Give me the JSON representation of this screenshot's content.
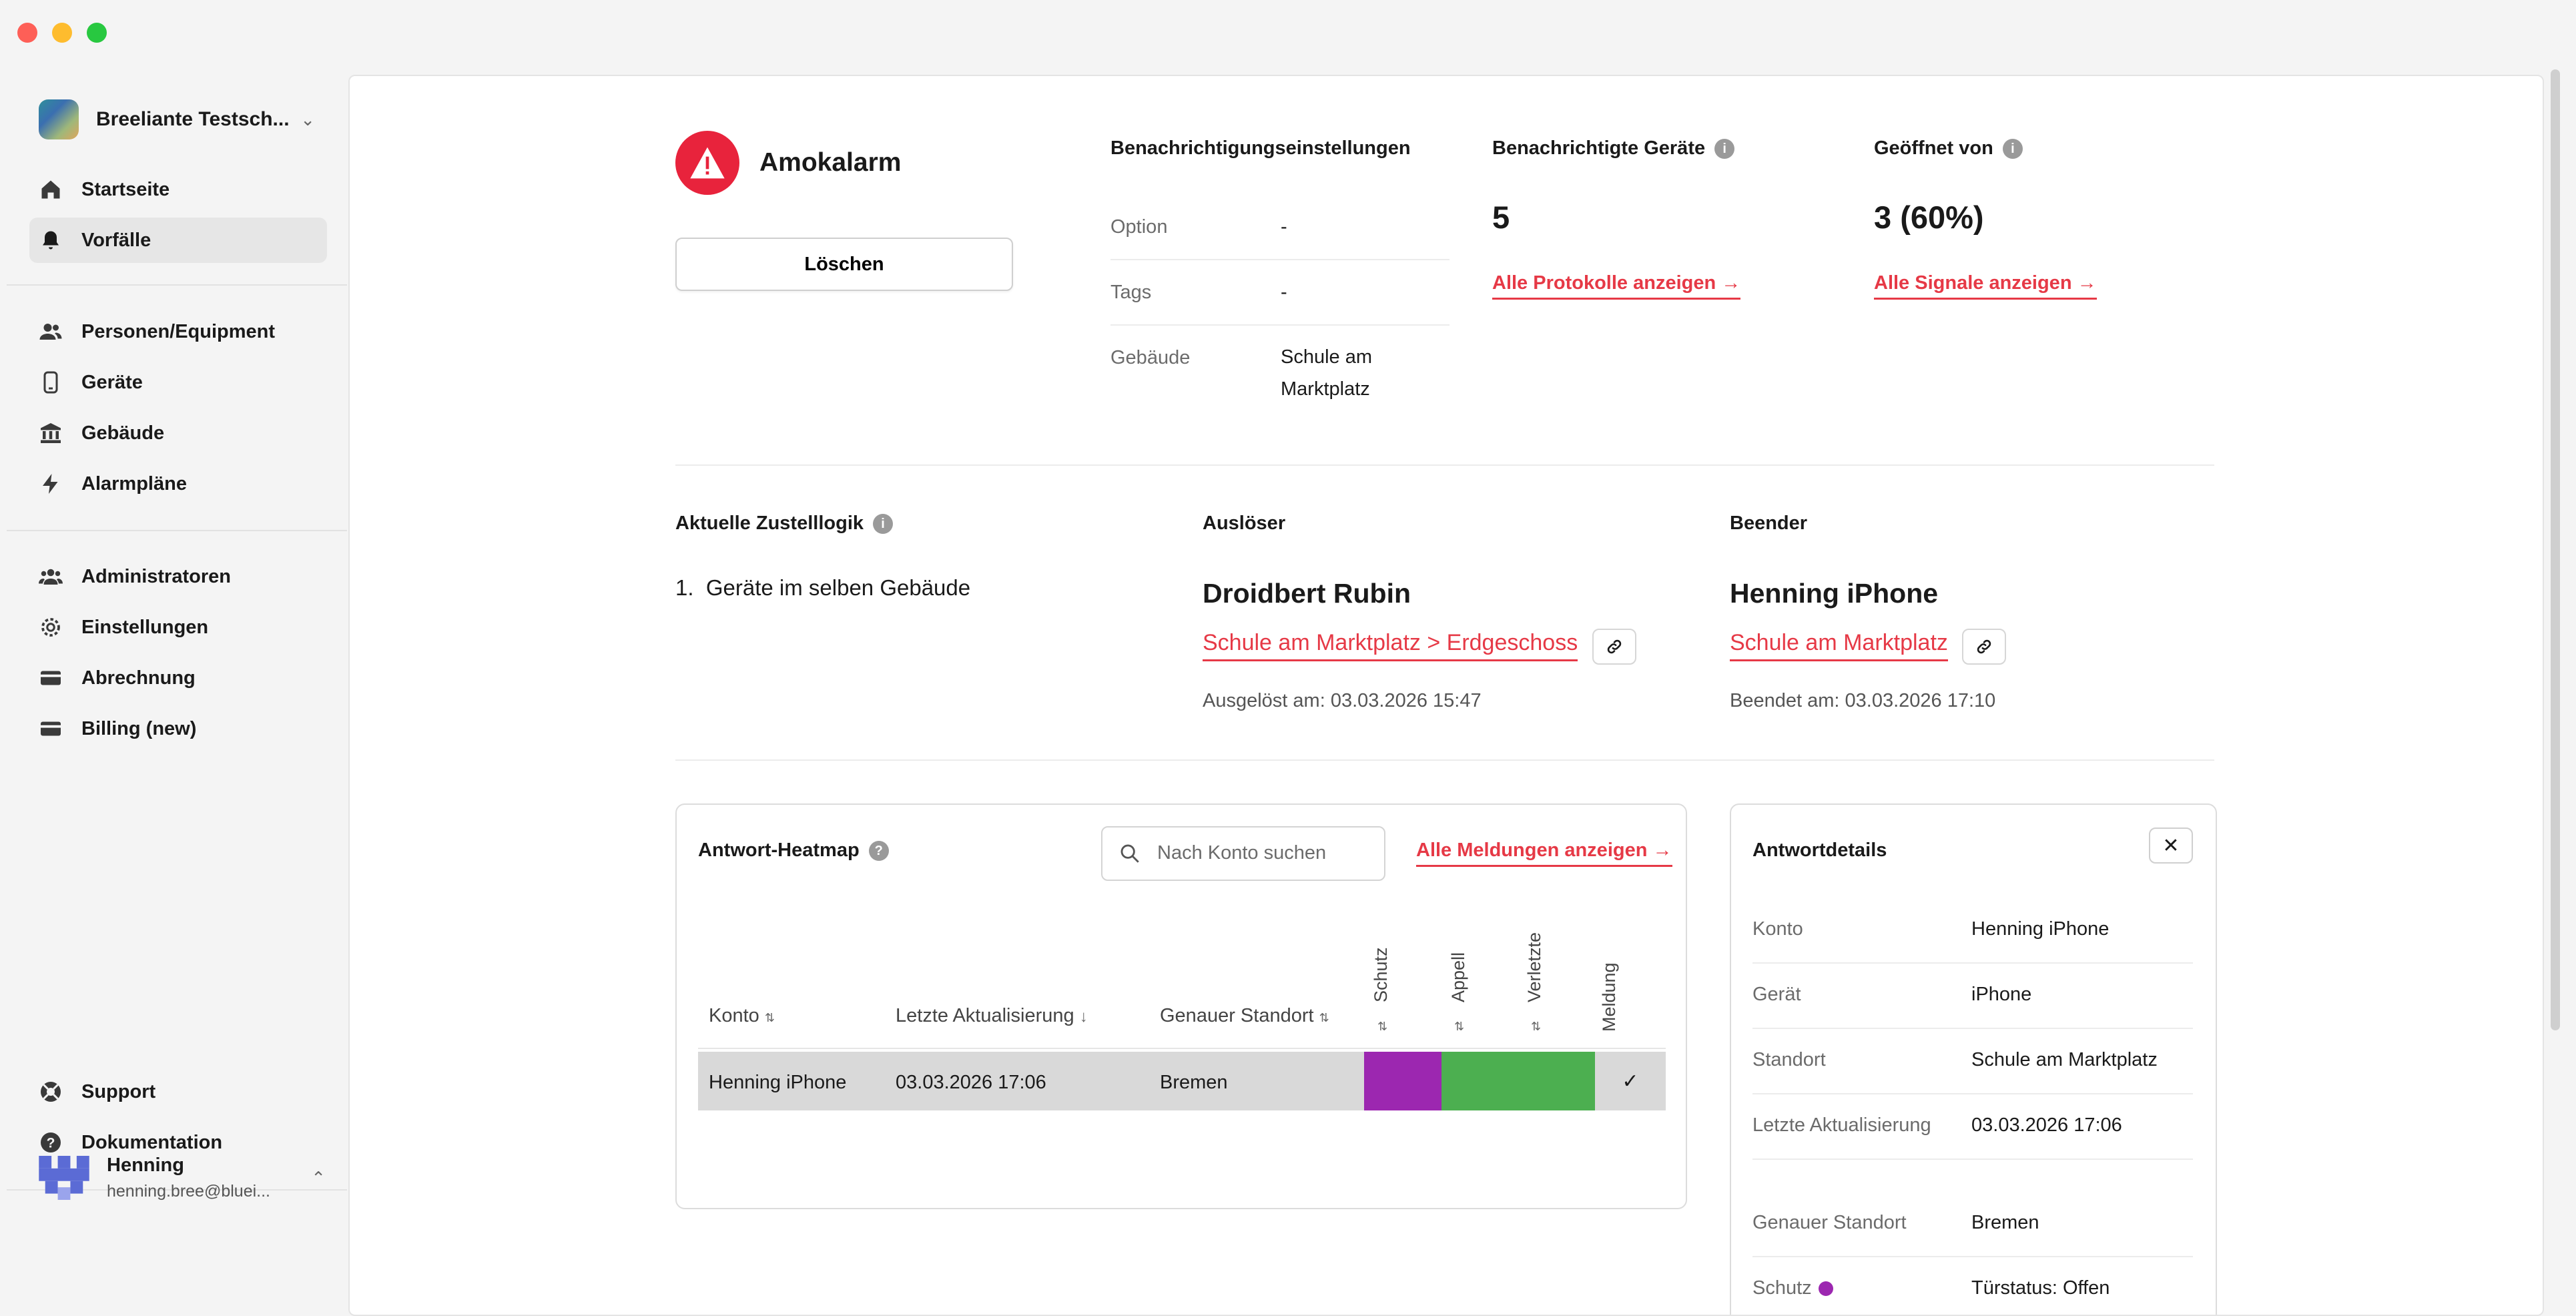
{
  "sidebar": {
    "org_name": "Breeliante Testsch...",
    "items_top": [
      {
        "label": "Startseite",
        "icon": "home-icon"
      },
      {
        "label": "Vorfälle",
        "icon": "bell-icon",
        "active": true
      }
    ],
    "items_mid": [
      {
        "label": "Personen/Equipment",
        "icon": "people-icon"
      },
      {
        "label": "Geräte",
        "icon": "phone-icon"
      },
      {
        "label": "Gebäude",
        "icon": "building-icon"
      },
      {
        "label": "Alarmpläne",
        "icon": "bolt-icon"
      }
    ],
    "items_admin": [
      {
        "label": "Administratoren",
        "icon": "admins-icon"
      },
      {
        "label": "Einstellungen",
        "icon": "gear-icon"
      },
      {
        "label": "Abrechnung",
        "icon": "card-icon"
      },
      {
        "label": "Billing (new)",
        "icon": "card-icon"
      }
    ],
    "items_bottom": [
      {
        "label": "Support",
        "icon": "lifebuoy-icon"
      },
      {
        "label": "Dokumentation",
        "icon": "help-icon"
      }
    ],
    "user": {
      "name": "Henning",
      "email": "henning.bree@bluei..."
    }
  },
  "incident": {
    "title": "Amokalarm",
    "delete_label": "Löschen"
  },
  "notification_settings": {
    "heading": "Benachrichtigungseinstellungen",
    "rows": [
      {
        "key": "Option",
        "value": "-"
      },
      {
        "key": "Tags",
        "value": "-"
      },
      {
        "key": "Gebäude",
        "value": "Schule am Marktplatz"
      }
    ]
  },
  "notified_devices": {
    "heading": "Benachrichtigte Geräte",
    "value": "5",
    "link": "Alle Protokolle anzeigen →"
  },
  "opened_by": {
    "heading": "Geöffnet von",
    "value": "3 (60%)",
    "link": "Alle Signale anzeigen →"
  },
  "delivery_logic": {
    "heading": "Aktuelle Zustelllogik",
    "item": "1.  Geräte im selben Gebäude"
  },
  "trigger": {
    "heading": "Auslöser",
    "name": "Droidbert Rubin",
    "location": "Schule am Marktplatz > Erdgeschoss",
    "time": "Ausgelöst am: 03.03.2026 15:47"
  },
  "ender": {
    "heading": "Beender",
    "name": "Henning iPhone",
    "location": "Schule am Marktplatz",
    "time": "Beendet am: 03.03.2026 17:10"
  },
  "heatmap": {
    "title": "Antwort-Heatmap",
    "search_placeholder": "Nach Konto suchen",
    "all_link": "Alle Meldungen anzeigen →",
    "columns": {
      "account": "Konto",
      "updated": "Letzte Aktualisierung",
      "location": "Genauer Standort",
      "schutz": "Schutz",
      "appell": "Appell",
      "verletzte": "Verletzte",
      "meldung": "Meldung"
    },
    "rows": [
      {
        "account": "Henning iPhone",
        "updated": "03.03.2026 17:06",
        "location": "Bremen",
        "schutz_color": "#9c27b0",
        "appell_color": "#4caf50",
        "verletzte_color": "#4caf50",
        "meldung": "✓"
      }
    ]
  },
  "details": {
    "title": "Antwortdetails",
    "close": "✕",
    "rows": [
      {
        "key": "Konto",
        "value": "Henning iPhone"
      },
      {
        "key": "Gerät",
        "value": "iPhone"
      },
      {
        "key": "Standort",
        "value": "Schule am Marktplatz"
      },
      {
        "key": "Letzte Aktualisierung",
        "value": "03.03.2026 17:06"
      },
      {
        "key": "Genauer Standort",
        "value": "Bremen"
      },
      {
        "key": "Schutz",
        "value": "Türstatus: Offen"
      }
    ]
  }
}
